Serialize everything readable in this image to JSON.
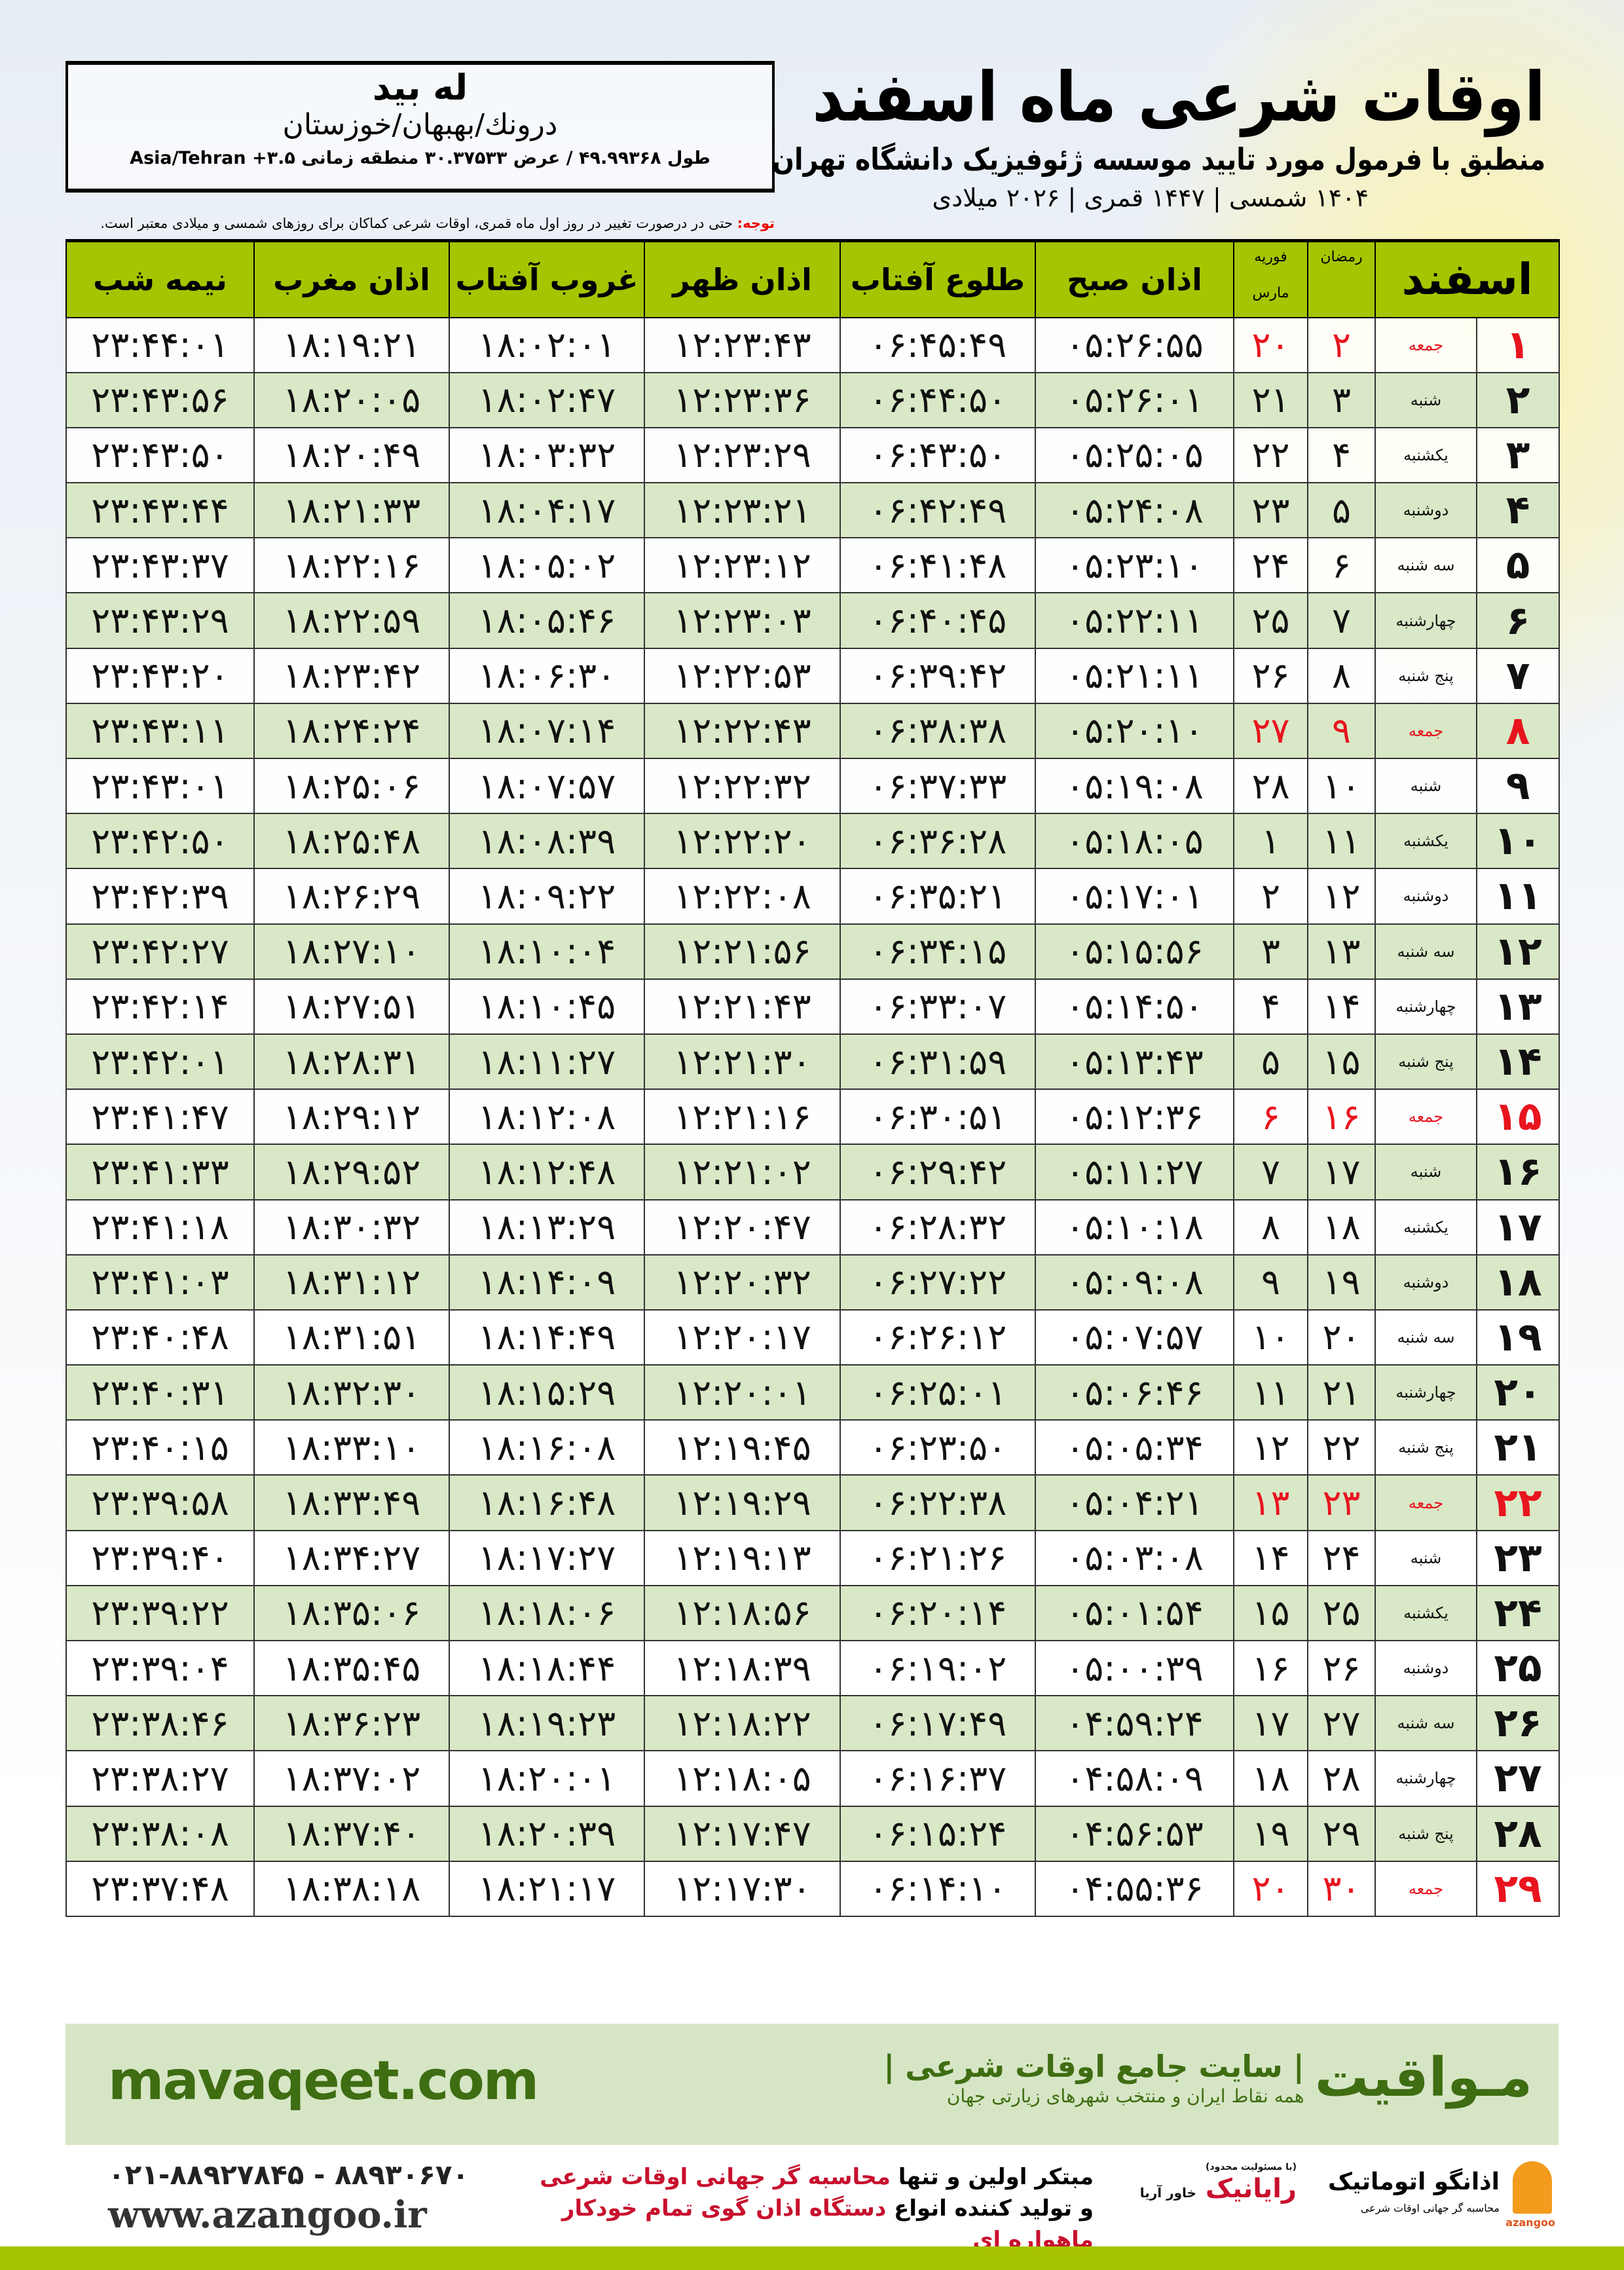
{
  "header": {
    "title": "اوقات شرعی ماه اسفند",
    "subtitle": "منطبق با فرمول مورد تایید موسسه ژئوفیزیک دانشگاه تهران",
    "dates": "۱۴۰۴ شمسی | ۱۴۴۷ قمری | ۲۰۲۶ میلادی"
  },
  "location": {
    "name": "له بید",
    "path": "درونك/بهبهان/خوزستان",
    "coords": "طول ۴۹.۹۹۳۶۸ / عرض ۳۰.۳۷۵۳۳ منطقه زمانی ۳.۵+ Asia/Tehran"
  },
  "note": {
    "label": "توجه:",
    "text": " حتی در درصورت تغییر در روز اول ماه قمری، اوقات شرعی کماکان برای روزهای شمسی و میلادی معتبر است."
  },
  "table": {
    "headers": {
      "day": "اسفند",
      "ramadan": "رمضان",
      "march_top": "فوریه",
      "march_bottom": "مارس",
      "fajr": "اذان صبح",
      "sunrise": "طلوع آفتاب",
      "zohr": "اذان ظهر",
      "sunset": "غروب آفتاب",
      "maghrib": "اذان مغرب",
      "midnight": "نیمه شب"
    },
    "friday_color": "#e8141e",
    "alt_row_color": "#d9e8c6",
    "header_color": "#a6c400",
    "rows": [
      [
        "۱",
        "جمعه",
        "۲",
        "۲۰",
        "۰۵:۲۶:۵۵",
        "۰۶:۴۵:۴۹",
        "۱۲:۲۳:۴۳",
        "۱۸:۰۲:۰۱",
        "۱۸:۱۹:۲۱",
        "۲۳:۴۴:۰۱",
        true
      ],
      [
        "۲",
        "شنبه",
        "۳",
        "۲۱",
        "۰۵:۲۶:۰۱",
        "۰۶:۴۴:۵۰",
        "۱۲:۲۳:۳۶",
        "۱۸:۰۲:۴۷",
        "۱۸:۲۰:۰۵",
        "۲۳:۴۳:۵۶",
        false
      ],
      [
        "۳",
        "یکشنبه",
        "۴",
        "۲۲",
        "۰۵:۲۵:۰۵",
        "۰۶:۴۳:۵۰",
        "۱۲:۲۳:۲۹",
        "۱۸:۰۳:۳۲",
        "۱۸:۲۰:۴۹",
        "۲۳:۴۳:۵۰",
        false
      ],
      [
        "۴",
        "دوشنبه",
        "۵",
        "۲۳",
        "۰۵:۲۴:۰۸",
        "۰۶:۴۲:۴۹",
        "۱۲:۲۳:۲۱",
        "۱۸:۰۴:۱۷",
        "۱۸:۲۱:۳۳",
        "۲۳:۴۳:۴۴",
        false
      ],
      [
        "۵",
        "سه شنبه",
        "۶",
        "۲۴",
        "۰۵:۲۳:۱۰",
        "۰۶:۴۱:۴۸",
        "۱۲:۲۳:۱۲",
        "۱۸:۰۵:۰۲",
        "۱۸:۲۲:۱۶",
        "۲۳:۴۳:۳۷",
        false
      ],
      [
        "۶",
        "چهارشنبه",
        "۷",
        "۲۵",
        "۰۵:۲۲:۱۱",
        "۰۶:۴۰:۴۵",
        "۱۲:۲۳:۰۳",
        "۱۸:۰۵:۴۶",
        "۱۸:۲۲:۵۹",
        "۲۳:۴۳:۲۹",
        false
      ],
      [
        "۷",
        "پنج شنبه",
        "۸",
        "۲۶",
        "۰۵:۲۱:۱۱",
        "۰۶:۳۹:۴۲",
        "۱۲:۲۲:۵۳",
        "۱۸:۰۶:۳۰",
        "۱۸:۲۳:۴۲",
        "۲۳:۴۳:۲۰",
        false
      ],
      [
        "۸",
        "جمعه",
        "۹",
        "۲۷",
        "۰۵:۲۰:۱۰",
        "۰۶:۳۸:۳۸",
        "۱۲:۲۲:۴۳",
        "۱۸:۰۷:۱۴",
        "۱۸:۲۴:۲۴",
        "۲۳:۴۳:۱۱",
        true
      ],
      [
        "۹",
        "شنبه",
        "۱۰",
        "۲۸",
        "۰۵:۱۹:۰۸",
        "۰۶:۳۷:۳۳",
        "۱۲:۲۲:۳۲",
        "۱۸:۰۷:۵۷",
        "۱۸:۲۵:۰۶",
        "۲۳:۴۳:۰۱",
        false
      ],
      [
        "۱۰",
        "یکشنبه",
        "۱۱",
        "۱",
        "۰۵:۱۸:۰۵",
        "۰۶:۳۶:۲۸",
        "۱۲:۲۲:۲۰",
        "۱۸:۰۸:۳۹",
        "۱۸:۲۵:۴۸",
        "۲۳:۴۲:۵۰",
        false
      ],
      [
        "۱۱",
        "دوشنبه",
        "۱۲",
        "۲",
        "۰۵:۱۷:۰۱",
        "۰۶:۳۵:۲۱",
        "۱۲:۲۲:۰۸",
        "۱۸:۰۹:۲۲",
        "۱۸:۲۶:۲۹",
        "۲۳:۴۲:۳۹",
        false
      ],
      [
        "۱۲",
        "سه شنبه",
        "۱۳",
        "۳",
        "۰۵:۱۵:۵۶",
        "۰۶:۳۴:۱۵",
        "۱۲:۲۱:۵۶",
        "۱۸:۱۰:۰۴",
        "۱۸:۲۷:۱۰",
        "۲۳:۴۲:۲۷",
        false
      ],
      [
        "۱۳",
        "چهارشنبه",
        "۱۴",
        "۴",
        "۰۵:۱۴:۵۰",
        "۰۶:۳۳:۰۷",
        "۱۲:۲۱:۴۳",
        "۱۸:۱۰:۴۵",
        "۱۸:۲۷:۵۱",
        "۲۳:۴۲:۱۴",
        false
      ],
      [
        "۱۴",
        "پنج شنبه",
        "۱۵",
        "۵",
        "۰۵:۱۳:۴۳",
        "۰۶:۳۱:۵۹",
        "۱۲:۲۱:۳۰",
        "۱۸:۱۱:۲۷",
        "۱۸:۲۸:۳۱",
        "۲۳:۴۲:۰۱",
        false
      ],
      [
        "۱۵",
        "جمعه",
        "۱۶",
        "۶",
        "۰۵:۱۲:۳۶",
        "۰۶:۳۰:۵۱",
        "۱۲:۲۱:۱۶",
        "۱۸:۱۲:۰۸",
        "۱۸:۲۹:۱۲",
        "۲۳:۴۱:۴۷",
        true
      ],
      [
        "۱۶",
        "شنبه",
        "۱۷",
        "۷",
        "۰۵:۱۱:۲۷",
        "۰۶:۲۹:۴۲",
        "۱۲:۲۱:۰۲",
        "۱۸:۱۲:۴۸",
        "۱۸:۲۹:۵۲",
        "۲۳:۴۱:۳۳",
        false
      ],
      [
        "۱۷",
        "یکشنبه",
        "۱۸",
        "۸",
        "۰۵:۱۰:۱۸",
        "۰۶:۲۸:۳۲",
        "۱۲:۲۰:۴۷",
        "۱۸:۱۳:۲۹",
        "۱۸:۳۰:۳۲",
        "۲۳:۴۱:۱۸",
        false
      ],
      [
        "۱۸",
        "دوشنبه",
        "۱۹",
        "۹",
        "۰۵:۰۹:۰۸",
        "۰۶:۲۷:۲۲",
        "۱۲:۲۰:۳۲",
        "۱۸:۱۴:۰۹",
        "۱۸:۳۱:۱۲",
        "۲۳:۴۱:۰۳",
        false
      ],
      [
        "۱۹",
        "سه شنبه",
        "۲۰",
        "۱۰",
        "۰۵:۰۷:۵۷",
        "۰۶:۲۶:۱۲",
        "۱۲:۲۰:۱۷",
        "۱۸:۱۴:۴۹",
        "۱۸:۳۱:۵۱",
        "۲۳:۴۰:۴۸",
        false
      ],
      [
        "۲۰",
        "چهارشنبه",
        "۲۱",
        "۱۱",
        "۰۵:۰۶:۴۶",
        "۰۶:۲۵:۰۱",
        "۱۲:۲۰:۰۱",
        "۱۸:۱۵:۲۹",
        "۱۸:۳۲:۳۰",
        "۲۳:۴۰:۳۱",
        false
      ],
      [
        "۲۱",
        "پنج شنبه",
        "۲۲",
        "۱۲",
        "۰۵:۰۵:۳۴",
        "۰۶:۲۳:۵۰",
        "۱۲:۱۹:۴۵",
        "۱۸:۱۶:۰۸",
        "۱۸:۳۳:۱۰",
        "۲۳:۴۰:۱۵",
        false
      ],
      [
        "۲۲",
        "جمعه",
        "۲۳",
        "۱۳",
        "۰۵:۰۴:۲۱",
        "۰۶:۲۲:۳۸",
        "۱۲:۱۹:۲۹",
        "۱۸:۱۶:۴۸",
        "۱۸:۳۳:۴۹",
        "۲۳:۳۹:۵۸",
        true
      ],
      [
        "۲۳",
        "شنبه",
        "۲۴",
        "۱۴",
        "۰۵:۰۳:۰۸",
        "۰۶:۲۱:۲۶",
        "۱۲:۱۹:۱۳",
        "۱۸:۱۷:۲۷",
        "۱۸:۳۴:۲۷",
        "۲۳:۳۹:۴۰",
        false
      ],
      [
        "۲۴",
        "یکشنبه",
        "۲۵",
        "۱۵",
        "۰۵:۰۱:۵۴",
        "۰۶:۲۰:۱۴",
        "۱۲:۱۸:۵۶",
        "۱۸:۱۸:۰۶",
        "۱۸:۳۵:۰۶",
        "۲۳:۳۹:۲۲",
        false
      ],
      [
        "۲۵",
        "دوشنبه",
        "۲۶",
        "۱۶",
        "۰۵:۰۰:۳۹",
        "۰۶:۱۹:۰۲",
        "۱۲:۱۸:۳۹",
        "۱۸:۱۸:۴۴",
        "۱۸:۳۵:۴۵",
        "۲۳:۳۹:۰۴",
        false
      ],
      [
        "۲۶",
        "سه شنبه",
        "۲۷",
        "۱۷",
        "۰۴:۵۹:۲۴",
        "۰۶:۱۷:۴۹",
        "۱۲:۱۸:۲۲",
        "۱۸:۱۹:۲۳",
        "۱۸:۳۶:۲۳",
        "۲۳:۳۸:۴۶",
        false
      ],
      [
        "۲۷",
        "چهارشنبه",
        "۲۸",
        "۱۸",
        "۰۴:۵۸:۰۹",
        "۰۶:۱۶:۳۷",
        "۱۲:۱۸:۰۵",
        "۱۸:۲۰:۰۱",
        "۱۸:۳۷:۰۲",
        "۲۳:۳۸:۲۷",
        false
      ],
      [
        "۲۸",
        "پنج شنبه",
        "۲۹",
        "۱۹",
        "۰۴:۵۶:۵۳",
        "۰۶:۱۵:۲۴",
        "۱۲:۱۷:۴۷",
        "۱۸:۲۰:۳۹",
        "۱۸:۳۷:۴۰",
        "۲۳:۳۸:۰۸",
        false
      ],
      [
        "۲۹",
        "جمعه",
        "۳۰",
        "۲۰",
        "۰۴:۵۵:۳۶",
        "۰۶:۱۴:۱۰",
        "۱۲:۱۷:۳۰",
        "۱۸:۲۱:۱۷",
        "۱۸:۳۸:۱۸",
        "۲۳:۳۷:۴۸",
        true
      ]
    ]
  },
  "footer": {
    "brand": "مـواقیت",
    "tagline": "| سایت جامع اوقات شرعی |",
    "small": "همه نقاط ایران و منتخب شهرهای زیارتی جهان",
    "site": "mavaqeet.com",
    "promo_1a": "مبتکر اولین و تنها ",
    "promo_1b": "محاسبه گر جهانی اوقات شرعی",
    "promo_2a": "و تولید کننده انواع ",
    "promo_2b": "دستگاه اذان گوی تمام خودکار ماهواره ای",
    "phone": "۰۲۱-۸۸۹۲۷۸۴۵ - ۸۸۹۳۰۶۷۰",
    "web": "www.azangoo.ir",
    "logo_rayanik": "رایانیک",
    "logo_rayanik_sub": "خاور آریا",
    "logo_rayanik_small": "(با مسئولیت محدود)",
    "logo_azangoo": "اذانگو اتوماتیک",
    "logo_azangoo_sub": "محاسبه گر جهانی اوقات شرعی",
    "logo_azangoo_en": "azangoo",
    "accent": "#a6c400",
    "brand_color": "#3f6d12",
    "promo_red": "#c8102e"
  }
}
